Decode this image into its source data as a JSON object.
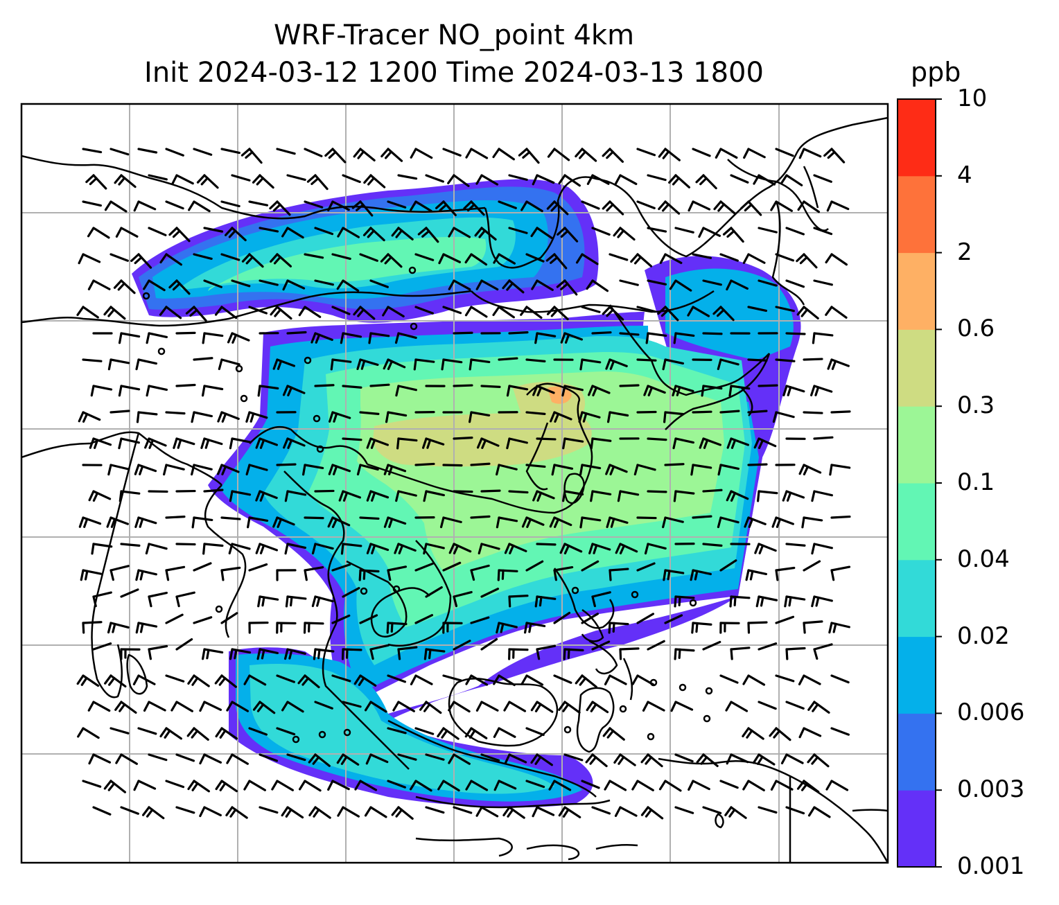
{
  "chart_data": {
    "type": "filled-contour map with wind barbs",
    "title": "WRF-Tracer NO_point 4km",
    "subtitle": "Init 2024-03-12 1200 Time 2024-03-13 1800",
    "colorbar": {
      "unit": "ppb",
      "levels": [
        "0.001",
        "0.003",
        "0.006",
        "0.02",
        "0.04",
        "0.1",
        "0.3",
        "0.6",
        "2",
        "4",
        "10"
      ],
      "colors": [
        "#6430f8",
        "#3472f0",
        "#04b0ea",
        "#32dad8",
        "#62f6b4",
        "#9cf696",
        "#cedc82",
        "#feb064",
        "#fe723a",
        "#fe2c16"
      ]
    },
    "grid": true,
    "legend": "right colorbar"
  }
}
